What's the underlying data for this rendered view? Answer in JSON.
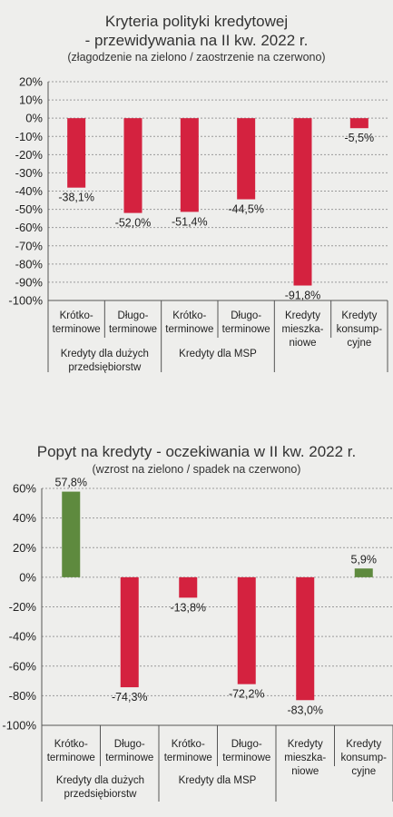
{
  "colors": {
    "negative": "#d4223f",
    "positive": "#5e8a3e",
    "grid": "#9a9a9a",
    "axis": "#555555",
    "text": "#222222"
  },
  "chart_data": [
    {
      "type": "bar",
      "title_line1": "Kryteria polityki kredytowej",
      "title_line2": "- przewidywania na II kw. 2022 r.",
      "subtitle": "(złagodzenie na zielono / zaostrzenie na czerwono)",
      "categories": [
        [
          "Krótko-",
          "terminowe"
        ],
        [
          "Długo-",
          "terminowe"
        ],
        [
          "Krótko-",
          "terminowe"
        ],
        [
          "Długo-",
          "terminowe"
        ],
        [
          "Kredyty",
          "mieszka-",
          "niowe"
        ],
        [
          "Kredyty",
          "konsump-",
          "cyjne"
        ]
      ],
      "groups": [
        {
          "label": [
            "Kredyty dla dużych",
            "przedsiębiorstw"
          ],
          "span": [
            0,
            1
          ]
        },
        {
          "label": [
            "Kredyty dla MSP"
          ],
          "span": [
            2,
            3
          ]
        }
      ],
      "values": [
        -38.1,
        -52.0,
        -51.4,
        -44.5,
        -91.8,
        -5.5
      ],
      "value_labels": [
        "-38,1%",
        "-52,0%",
        "-51,4%",
        "-44,5%",
        "-91,8%",
        "-5,5%"
      ],
      "ylim": [
        -100,
        20
      ],
      "yticks": [
        20,
        10,
        0,
        -10,
        -20,
        -30,
        -40,
        -50,
        -60,
        -70,
        -80,
        -90,
        -100
      ],
      "ytick_labels": [
        "20%",
        "10%",
        "0%",
        "-10%",
        "-20%",
        "-30%",
        "-40%",
        "-50%",
        "-60%",
        "-70%",
        "-80%",
        "-90%",
        "-100%"
      ],
      "grid": true
    },
    {
      "type": "bar",
      "title_line1": "Popyt na kredyty - oczekiwania w II kw. 2022 r.",
      "subtitle": "(wzrost na zielono / spadek na czerwono)",
      "categories": [
        [
          "Krótko-",
          "terminowe"
        ],
        [
          "Długo-",
          "terminowe"
        ],
        [
          "Krótko-",
          "terminowe"
        ],
        [
          "Długo-",
          "terminowe"
        ],
        [
          "Kredyty",
          "mieszka-",
          "niowe"
        ],
        [
          "Kredyty",
          "konsump-",
          "cyjne"
        ]
      ],
      "groups": [
        {
          "label": [
            "Kredyty dla dużych",
            "przedsiębiorstw"
          ],
          "span": [
            0,
            1
          ]
        },
        {
          "label": [
            "Kredyty dla MSP"
          ],
          "span": [
            2,
            3
          ]
        }
      ],
      "values": [
        57.8,
        -74.3,
        -13.8,
        -72.2,
        -83.0,
        5.9
      ],
      "value_labels": [
        "57,8%",
        "-74,3%",
        "-13,8%",
        "-72,2%",
        "-83,0%",
        "5,9%"
      ],
      "ylim": [
        -100,
        60
      ],
      "yticks": [
        60,
        40,
        20,
        0,
        -20,
        -40,
        -60,
        -80,
        -100
      ],
      "ytick_labels": [
        "60%",
        "40%",
        "20%",
        "0%",
        "-20%",
        "-40%",
        "-60%",
        "-80%",
        "-100%"
      ],
      "grid": true
    }
  ]
}
